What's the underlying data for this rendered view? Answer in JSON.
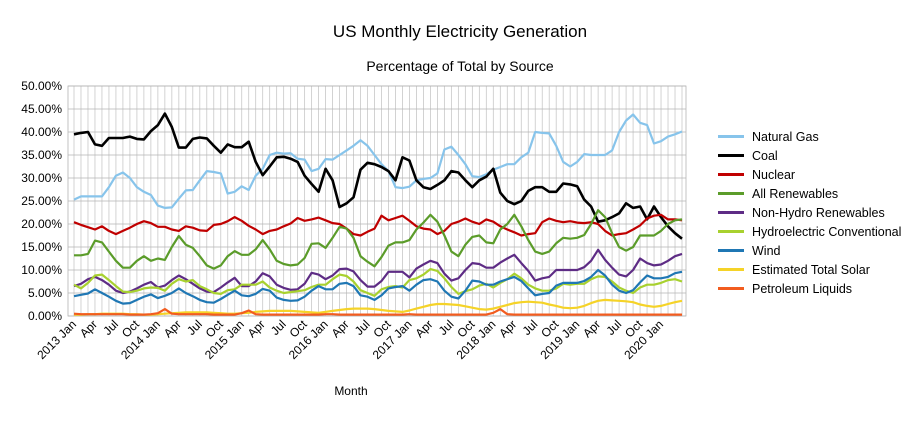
{
  "chart_data": {
    "type": "line",
    "title": "US Monthly Electricity Generation",
    "subtitle": "Percentage of Total by Source",
    "xlabel": "Month",
    "ylabel": "",
    "ylim": [
      0,
      50
    ],
    "ytick_labels": [
      "0.00%",
      "5.00%",
      "10.00%",
      "15.00%",
      "20.00%",
      "25.00%",
      "30.00%",
      "35.00%",
      "40.00%",
      "45.00%",
      "50.00%"
    ],
    "x_start": "2013 Jan",
    "x_labels": [
      {
        "label": "2013 Jan",
        "month_index": 0
      },
      {
        "label": "Apr",
        "month_index": 3
      },
      {
        "label": "Jul",
        "month_index": 6
      },
      {
        "label": "Oct",
        "month_index": 9
      },
      {
        "label": "2014 Jan",
        "month_index": 12
      },
      {
        "label": "Apr",
        "month_index": 15
      },
      {
        "label": "Jul",
        "month_index": 18
      },
      {
        "label": "Oct",
        "month_index": 21
      },
      {
        "label": "2015 Jan",
        "month_index": 24
      },
      {
        "label": "Apr",
        "month_index": 27
      },
      {
        "label": "Jul",
        "month_index": 30
      },
      {
        "label": "Oct",
        "month_index": 33
      },
      {
        "label": "2016 Jan",
        "month_index": 36
      },
      {
        "label": "Apr",
        "month_index": 39
      },
      {
        "label": "Jul",
        "month_index": 42
      },
      {
        "label": "Oct",
        "month_index": 45
      },
      {
        "label": "2017 Jan",
        "month_index": 48
      },
      {
        "label": "Apr",
        "month_index": 51
      },
      {
        "label": "Jul",
        "month_index": 54
      },
      {
        "label": "Oct",
        "month_index": 57
      },
      {
        "label": "2018 Jan",
        "month_index": 60
      },
      {
        "label": "Apr",
        "month_index": 63
      },
      {
        "label": "Jul",
        "month_index": 66
      },
      {
        "label": "Oct",
        "month_index": 69
      },
      {
        "label": "2019 Jan",
        "month_index": 72
      },
      {
        "label": "Apr",
        "month_index": 75
      },
      {
        "label": "Jul",
        "month_index": 78
      },
      {
        "label": "Oct",
        "month_index": 81
      },
      {
        "label": "2020 Jan",
        "month_index": 84
      }
    ],
    "grid": true,
    "legend_position": "right",
    "series": [
      {
        "name": "Natural Gas",
        "color": "#87C4EB",
        "values": [
          25.3,
          26,
          26,
          26,
          26,
          28,
          30.5,
          31.2,
          30,
          28,
          27,
          26.3,
          24,
          23.5,
          23.6,
          25.5,
          27.3,
          27.4,
          29.5,
          31.5,
          31.3,
          31,
          26.6,
          27,
          28.2,
          27.4,
          30.5,
          32,
          35,
          35.5,
          35.3,
          35.4,
          34.2,
          34,
          31.5,
          32,
          34.1,
          34,
          35,
          36,
          37,
          38.2,
          37,
          35,
          33,
          31.5,
          28,
          27.8,
          28.1,
          29.5,
          29.8,
          30,
          31,
          36.2,
          36.8,
          35,
          33,
          30.4,
          30.2,
          30.8,
          31.8,
          32.4,
          33,
          33,
          34.5,
          35.5,
          40,
          39.8,
          39.7,
          37,
          33.5,
          32.5,
          33.5,
          35.2,
          35,
          35,
          35,
          36,
          40,
          42.5,
          43.8,
          42,
          41.5,
          37.5,
          38,
          39,
          39.5,
          40.1
        ]
      },
      {
        "name": "Coal",
        "color": "#000000",
        "values": [
          39.5,
          39.8,
          40,
          37.3,
          37,
          38.7,
          38.7,
          38.7,
          39,
          38.5,
          38.4,
          40.2,
          41.5,
          44,
          41.1,
          36.6,
          36.6,
          38.5,
          38.8,
          38.6,
          37,
          35.5,
          37.3,
          36.7,
          36.7,
          37.9,
          33.5,
          30.6,
          32.5,
          34.5,
          34.6,
          34.2,
          33.5,
          30.5,
          28.7,
          27,
          32,
          29.5,
          23.7,
          24.5,
          25.8,
          31.8,
          33.3,
          33,
          32.4,
          31.5,
          29.5,
          34.5,
          33.8,
          29.5,
          28,
          27.6,
          28.5,
          29.5,
          31.5,
          31.2,
          29.5,
          28,
          29.5,
          30.3,
          32,
          26.8,
          25,
          24.3,
          25,
          27.2,
          28,
          28,
          27,
          27,
          28.8,
          28.6,
          28.2,
          25.3,
          23.8,
          20.5,
          20.8,
          21.5,
          22.3,
          24.5,
          23.5,
          23.8,
          21,
          23.8,
          21.5,
          19.5,
          18,
          16.8
        ]
      },
      {
        "name": "Nuclear",
        "color": "#C00000",
        "values": [
          20.4,
          19.8,
          19.3,
          18.8,
          19.5,
          18.5,
          17.8,
          18.5,
          19.2,
          20,
          20.6,
          20.2,
          19.4,
          19.4,
          18.8,
          18.5,
          19.5,
          19.2,
          18.6,
          18.5,
          19.8,
          20,
          20.6,
          21.5,
          20.7,
          19.6,
          18.8,
          17.8,
          18.5,
          18.8,
          19.5,
          20.1,
          21.3,
          20.7,
          21,
          21.4,
          20.8,
          20.2,
          20,
          19,
          17.8,
          17.5,
          18.3,
          19,
          21.8,
          20.8,
          21.3,
          21.8,
          20.7,
          19.5,
          19,
          18.8,
          17.8,
          18.5,
          20,
          20.5,
          21.2,
          20.5,
          20,
          21,
          20.5,
          19.5,
          18.8,
          18.2,
          17.5,
          17.8,
          18,
          20.4,
          21.2,
          20.7,
          20.4,
          20.6,
          20.3,
          20.2,
          20.4,
          20,
          18.5,
          17.5,
          17.8,
          18,
          18.8,
          19.7,
          21.2,
          21.8,
          22,
          21,
          21,
          20.8
        ]
      },
      {
        "name": "All Renewables",
        "color": "#5B9C2A",
        "values": [
          13.2,
          13.2,
          13.5,
          16.4,
          16,
          14,
          12,
          10.5,
          10.5,
          12,
          13,
          12,
          12.5,
          12.2,
          15,
          17.4,
          15.5,
          14.8,
          13,
          11,
          10.3,
          11,
          13,
          14.1,
          13.3,
          13.3,
          14.5,
          16.5,
          14.5,
          12,
          11.3,
          11,
          11.2,
          12.6,
          15.7,
          15.8,
          14.8,
          17,
          19.4,
          19,
          17,
          13,
          11.8,
          10.8,
          12.8,
          15.3,
          16,
          16,
          16.5,
          18.8,
          20.3,
          22,
          20.5,
          17.5,
          14,
          13,
          15.5,
          17.2,
          17.5,
          16,
          15.8,
          18.8,
          20,
          22,
          19.5,
          16.5,
          14,
          13.5,
          14,
          15.8,
          17,
          16.8,
          17,
          17.6,
          20,
          23,
          21.5,
          18,
          15,
          14.2,
          15,
          17.5,
          17.5,
          17.5,
          18.5,
          20,
          20.8,
          21
        ]
      },
      {
        "name": "Non-Hydro Renewables",
        "color": "#5E2C85",
        "values": [
          6.5,
          7,
          8,
          8.5,
          7.8,
          6.8,
          5.5,
          5,
          5.3,
          6,
          6.8,
          7.4,
          6.2,
          6.6,
          7.8,
          8.8,
          8,
          7,
          6,
          5.3,
          5.2,
          6.2,
          7.3,
          8.3,
          6.5,
          6.5,
          7.5,
          9.3,
          8.6,
          6.8,
          6.1,
          5.7,
          5.8,
          7,
          9.4,
          9,
          8,
          8.8,
          10.2,
          10.3,
          9.7,
          7.8,
          6.4,
          6.4,
          7.6,
          9.6,
          9.6,
          9.6,
          8.4,
          10.3,
          11.2,
          12,
          11.5,
          9.2,
          7.7,
          8.2,
          10,
          11.5,
          11.3,
          10.5,
          10.5,
          11.6,
          12.5,
          13.3,
          11.5,
          9.8,
          7.7,
          8.2,
          8.5,
          10,
          10,
          10,
          10,
          10.6,
          12,
          14.4,
          12.2,
          10.5,
          9,
          8.6,
          10,
          12.5,
          11.5,
          11,
          11.2,
          12,
          13,
          13.5
        ]
      },
      {
        "name": "Hydroelectric Conventional",
        "color": "#A8D12F",
        "values": [
          6.8,
          6,
          7.2,
          8.8,
          9,
          7.8,
          6.5,
          5.3,
          5.2,
          5.5,
          6,
          6.2,
          6.1,
          5.5,
          7,
          8,
          7.5,
          7.8,
          6.5,
          5.8,
          5,
          4.8,
          5.6,
          5.8,
          6.8,
          6.8,
          6.8,
          7.5,
          6.2,
          5.5,
          5,
          5.2,
          5.4,
          5.6,
          6.3,
          6.8,
          6.8,
          8,
          9,
          8.7,
          7.5,
          5.6,
          5,
          4.4,
          5.8,
          6.3,
          6.5,
          6.2,
          7.8,
          8.2,
          9,
          10.2,
          9.8,
          8.2,
          6.3,
          4.8,
          5.4,
          5.8,
          6.6,
          7,
          6.2,
          7.2,
          8,
          9.2,
          8.2,
          6.8,
          6,
          5.5,
          5.5,
          6,
          7,
          6.8,
          7,
          7,
          8,
          8.6,
          8.5,
          7.5,
          6.2,
          5.5,
          5,
          6.2,
          6.8,
          6.8,
          7.2,
          7.8,
          8,
          7.5
        ]
      },
      {
        "name": "Wind",
        "color": "#1F77B4",
        "values": [
          4.3,
          4.6,
          4.9,
          5.8,
          5,
          4.2,
          3.3,
          2.7,
          2.8,
          3.5,
          4.2,
          4.7,
          3.9,
          4.4,
          5,
          6,
          5,
          4.3,
          3.5,
          3,
          2.9,
          3.7,
          4.6,
          5.5,
          4.5,
          4.3,
          4.8,
          5.9,
          5.5,
          4,
          3.5,
          3.3,
          3.4,
          4.2,
          5.5,
          6.5,
          5.8,
          5.8,
          7,
          7.2,
          6.5,
          4.5,
          4.2,
          3.5,
          4.5,
          6,
          6.3,
          6.5,
          5.5,
          6.8,
          7.8,
          8,
          7.5,
          5.5,
          4.2,
          3.8,
          5.5,
          7.7,
          7.5,
          6.8,
          6.8,
          7.5,
          8,
          8.5,
          7.6,
          6,
          4.5,
          4.8,
          5,
          6.6,
          7.2,
          7.2,
          7.2,
          7.6,
          8.5,
          10,
          8.8,
          6.8,
          5.5,
          5,
          5.6,
          7.3,
          8.8,
          8.2,
          8.2,
          8.5,
          9.3,
          9.6
        ]
      },
      {
        "name": "Estimated Total Solar",
        "color": "#F5D328",
        "values": [
          0.3,
          0.3,
          0.4,
          0.4,
          0.5,
          0.5,
          0.5,
          0.5,
          0.4,
          0.4,
          0.3,
          0.3,
          0.4,
          0.5,
          0.6,
          0.7,
          0.8,
          0.8,
          0.8,
          0.8,
          0.7,
          0.6,
          0.5,
          0.5,
          0.6,
          0.7,
          0.9,
          1,
          1.1,
          1.1,
          1.1,
          1.1,
          1,
          0.9,
          0.8,
          0.7,
          0.9,
          1.1,
          1.3,
          1.5,
          1.6,
          1.6,
          1.6,
          1.5,
          1.3,
          1.1,
          1,
          0.9,
          1.2,
          1.6,
          2,
          2.4,
          2.6,
          2.6,
          2.5,
          2.4,
          2.1,
          1.8,
          1.5,
          1.4,
          1.6,
          2,
          2.4,
          2.8,
          3,
          3.1,
          3,
          2.9,
          2.5,
          2.2,
          1.8,
          1.7,
          1.8,
          2.2,
          2.8,
          3.3,
          3.5,
          3.4,
          3.3,
          3.2,
          3,
          2.5,
          2.2,
          2,
          2.2,
          2.6,
          3,
          3.3
        ]
      },
      {
        "name": "Petroleum Liquids",
        "color": "#F25C1F",
        "values": [
          0.5,
          0.4,
          0.4,
          0.4,
          0.4,
          0.4,
          0.4,
          0.4,
          0.3,
          0.3,
          0.3,
          0.4,
          0.6,
          1.5,
          0.5,
          0.4,
          0.4,
          0.4,
          0.4,
          0.4,
          0.3,
          0.3,
          0.3,
          0.3,
          0.6,
          1.2,
          0.4,
          0.3,
          0.3,
          0.3,
          0.3,
          0.3,
          0.3,
          0.3,
          0.3,
          0.3,
          0.4,
          0.4,
          0.3,
          0.3,
          0.3,
          0.3,
          0.3,
          0.3,
          0.3,
          0.3,
          0.3,
          0.3,
          0.4,
          0.3,
          0.3,
          0.3,
          0.3,
          0.3,
          0.3,
          0.3,
          0.3,
          0.3,
          0.3,
          0.3,
          0.7,
          1.5,
          0.4,
          0.3,
          0.3,
          0.3,
          0.3,
          0.3,
          0.3,
          0.3,
          0.3,
          0.3,
          0.3,
          0.3,
          0.3,
          0.3,
          0.3,
          0.3,
          0.3,
          0.3,
          0.3,
          0.3,
          0.3,
          0.3,
          0.3,
          0.3,
          0.3,
          0.3
        ]
      }
    ]
  }
}
